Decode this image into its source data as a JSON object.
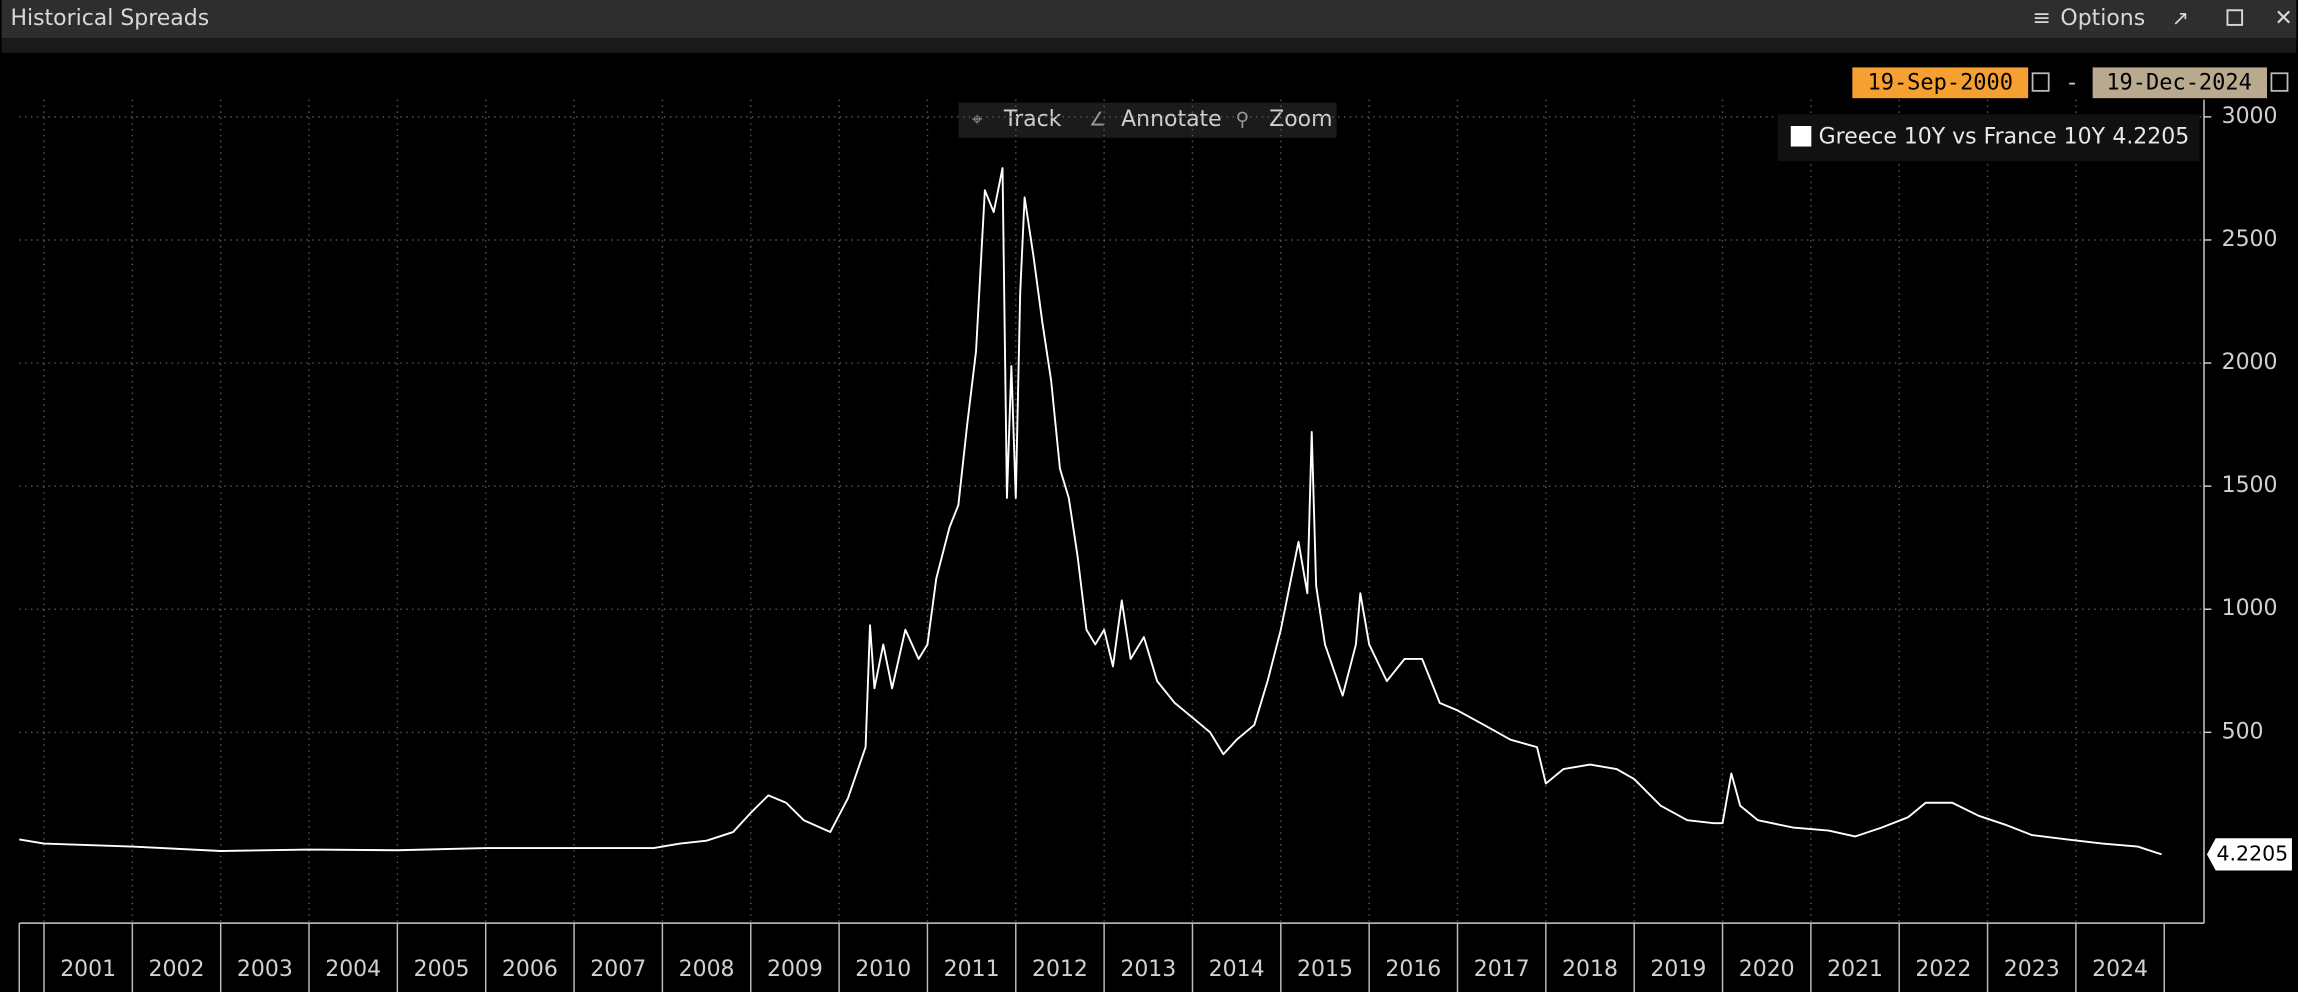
{
  "window": {
    "title": "Historical Spreads",
    "menu": "Options"
  },
  "date_range": {
    "start": "19-Sep-2000",
    "separator": "-",
    "end": "19-Dec-2024"
  },
  "toolbar": [
    "Track",
    "Annotate",
    "Zoom"
  ],
  "chart_data": {
    "type": "line",
    "x": [
      2000.72,
      2001.0,
      2002.0,
      2003.0,
      2004.0,
      2005.0,
      2006.0,
      2007.0,
      2007.9,
      2008.2,
      2008.5,
      2008.8,
      2009.0,
      2009.2,
      2009.4,
      2009.6,
      2009.9,
      2010.1,
      2010.3,
      2010.35,
      2010.4,
      2010.5,
      2010.6,
      2010.75,
      2010.9,
      2011.0,
      2011.1,
      2011.25,
      2011.35,
      2011.45,
      2011.55,
      2011.65,
      2011.75,
      2011.85,
      2011.9,
      2011.95,
      2012.0,
      2012.05,
      2012.1,
      2012.2,
      2012.3,
      2012.4,
      2012.5,
      2012.6,
      2012.7,
      2012.8,
      2012.9,
      2013.0,
      2013.1,
      2013.2,
      2013.3,
      2013.45,
      2013.6,
      2013.8,
      2014.0,
      2014.2,
      2014.35,
      2014.5,
      2014.7,
      2014.85,
      2015.0,
      2015.1,
      2015.2,
      2015.3,
      2015.35,
      2015.4,
      2015.5,
      2015.7,
      2015.85,
      2015.9,
      2016.0,
      2016.2,
      2016.4,
      2016.6,
      2016.8,
      2017.0,
      2017.3,
      2017.6,
      2017.9,
      2018.0,
      2018.2,
      2018.5,
      2018.8,
      2019.0,
      2019.3,
      2019.6,
      2019.9,
      2020.0,
      2020.1,
      2020.2,
      2020.4,
      2020.8,
      2021.2,
      2021.5,
      2021.8,
      2022.1,
      2022.3,
      2022.6,
      2022.9,
      2023.2,
      2023.5,
      2023.9,
      2024.3,
      2024.7,
      2024.97
    ],
    "series": [
      {
        "name": "Greece 10Y vs France 10Y",
        "color": "#ffffff",
        "values": [
          65,
          48,
          36,
          18,
          24,
          21,
          30,
          30,
          30,
          48,
          60,
          95,
          173,
          244,
          214,
          143,
          95,
          232,
          440,
          935,
          679,
          857,
          679,
          917,
          798,
          857,
          1125,
          1333,
          1423,
          1750,
          2048,
          2702,
          2613,
          2792,
          1452,
          1988,
          1452,
          2286,
          2673,
          2435,
          2167,
          1929,
          1571,
          1452,
          1214,
          917,
          857,
          917,
          768,
          1036,
          798,
          887,
          708,
          619,
          560,
          500,
          411,
          470,
          530,
          708,
          917,
          1095,
          1274,
          1065,
          1720,
          1095,
          857,
          649,
          857,
          1065,
          857,
          708,
          798,
          798,
          619,
          589,
          530,
          470,
          440,
          292,
          351,
          369,
          351,
          310,
          202,
          143,
          131,
          131,
          333,
          202,
          143,
          113,
          101,
          77,
          113,
          155,
          214,
          214,
          161,
          125,
          83,
          65,
          48,
          36,
          4.2205
        ]
      }
    ],
    "xlim": [
      2000.72,
      2025.45
    ],
    "xticks": [
      2001,
      2002,
      2003,
      2004,
      2005,
      2006,
      2007,
      2008,
      2009,
      2010,
      2011,
      2012,
      2013,
      2014,
      2015,
      2016,
      2017,
      2018,
      2019,
      2020,
      2021,
      2022,
      2023,
      2024
    ],
    "ylim": [
      -275,
      3070
    ],
    "yticks": [
      500,
      1000,
      1500,
      2000,
      2500,
      3000
    ],
    "grid": true
  }
}
